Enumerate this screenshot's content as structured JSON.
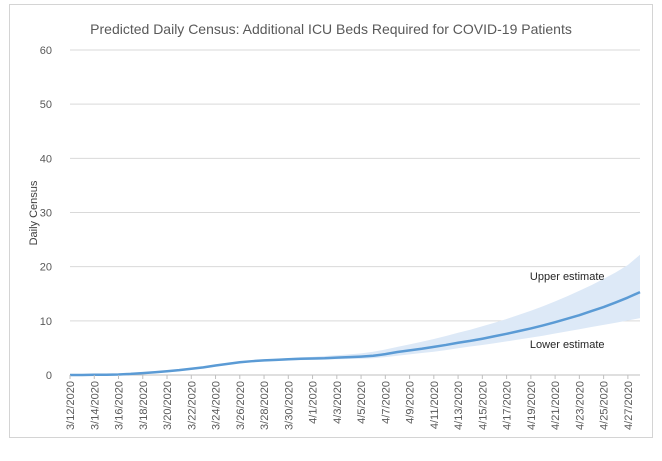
{
  "chart_data": {
    "type": "line",
    "title": "Predicted Daily Census: Additional ICU Beds Required for COVID-19 Patients",
    "xlabel": "",
    "ylabel": "Daily Census",
    "ylim": [
      0,
      60
    ],
    "yticks": [
      0,
      10,
      20,
      30,
      40,
      50,
      60
    ],
    "grid": "horizontal",
    "xtick_labels": [
      "3/12/2020",
      "3/14/2020",
      "3/16/2020",
      "3/18/2020",
      "3/20/2020",
      "3/22/2020",
      "3/24/2020",
      "3/26/2020",
      "3/28/2020",
      "3/30/2020",
      "4/1/2020",
      "4/3/2020",
      "4/5/2020",
      "4/7/2020",
      "4/9/2020",
      "4/11/2020",
      "4/13/2020",
      "4/15/2020",
      "4/17/2020",
      "4/19/2020",
      "4/21/2020",
      "4/23/2020",
      "4/25/2020",
      "4/27/2020"
    ],
    "x": [
      "3/12/2020",
      "3/13/2020",
      "3/14/2020",
      "3/15/2020",
      "3/16/2020",
      "3/17/2020",
      "3/18/2020",
      "3/19/2020",
      "3/20/2020",
      "3/21/2020",
      "3/22/2020",
      "3/23/2020",
      "3/24/2020",
      "3/25/2020",
      "3/26/2020",
      "3/27/2020",
      "3/28/2020",
      "3/29/2020",
      "3/30/2020",
      "3/31/2020",
      "4/1/2020",
      "4/2/2020",
      "4/3/2020",
      "4/4/2020",
      "4/5/2020",
      "4/6/2020",
      "4/7/2020",
      "4/8/2020",
      "4/9/2020",
      "4/10/2020",
      "4/11/2020",
      "4/12/2020",
      "4/13/2020",
      "4/14/2020",
      "4/15/2020",
      "4/16/2020",
      "4/17/2020",
      "4/18/2020",
      "4/19/2020",
      "4/20/2020",
      "4/21/2020",
      "4/22/2020",
      "4/23/2020",
      "4/24/2020",
      "4/25/2020",
      "4/26/2020",
      "4/27/2020",
      "4/28/2020"
    ],
    "series": [
      {
        "values": [
          0,
          0,
          0.05,
          0.05,
          0.1,
          0.2,
          0.35,
          0.5,
          0.7,
          0.9,
          1.15,
          1.4,
          1.75,
          2.05,
          2.35,
          2.55,
          2.7,
          2.8,
          2.9,
          3.0,
          3.05,
          3.1,
          3.2,
          3.3,
          3.4,
          3.55,
          3.85,
          4.25,
          4.55,
          4.85,
          5.2,
          5.55,
          5.95,
          6.3,
          6.7,
          7.15,
          7.6,
          8.1,
          8.6,
          9.15,
          9.75,
          10.4,
          11.05,
          11.8,
          12.55,
          13.4,
          14.3,
          15.3
        ],
        "color": "#5b9bd5"
      }
    ],
    "band": {
      "upper": [
        0,
        0,
        0.05,
        0.05,
        0.1,
        0.2,
        0.35,
        0.5,
        0.7,
        0.9,
        1.15,
        1.4,
        1.75,
        2.05,
        2.4,
        2.65,
        2.85,
        3.0,
        3.1,
        3.25,
        3.35,
        3.5,
        3.65,
        3.8,
        4.0,
        4.3,
        4.7,
        5.2,
        5.65,
        6.15,
        6.65,
        7.2,
        7.8,
        8.35,
        9.0,
        9.65,
        10.35,
        11.1,
        11.85,
        12.7,
        13.6,
        14.55,
        15.55,
        16.6,
        17.75,
        18.95,
        20.3,
        22.2
      ],
      "lower": [
        0,
        0,
        0.05,
        0.05,
        0.1,
        0.2,
        0.35,
        0.5,
        0.7,
        0.9,
        1.15,
        1.4,
        1.75,
        2.05,
        2.3,
        2.45,
        2.55,
        2.6,
        2.65,
        2.75,
        2.8,
        2.85,
        2.9,
        2.95,
        3.0,
        3.1,
        3.3,
        3.55,
        3.8,
        4.05,
        4.3,
        4.6,
        4.95,
        5.25,
        5.55,
        5.85,
        6.2,
        6.55,
        6.9,
        7.25,
        7.65,
        8.05,
        8.45,
        8.85,
        9.25,
        9.65,
        10.05,
        10.5
      ],
      "color": "#dde9f7"
    },
    "annotations": [
      {
        "text": "Upper estimate",
        "x": "4/22/2020",
        "y": 17.5
      },
      {
        "text": "Lower estimate",
        "x": "4/22/2020",
        "y": 5.0
      }
    ]
  }
}
